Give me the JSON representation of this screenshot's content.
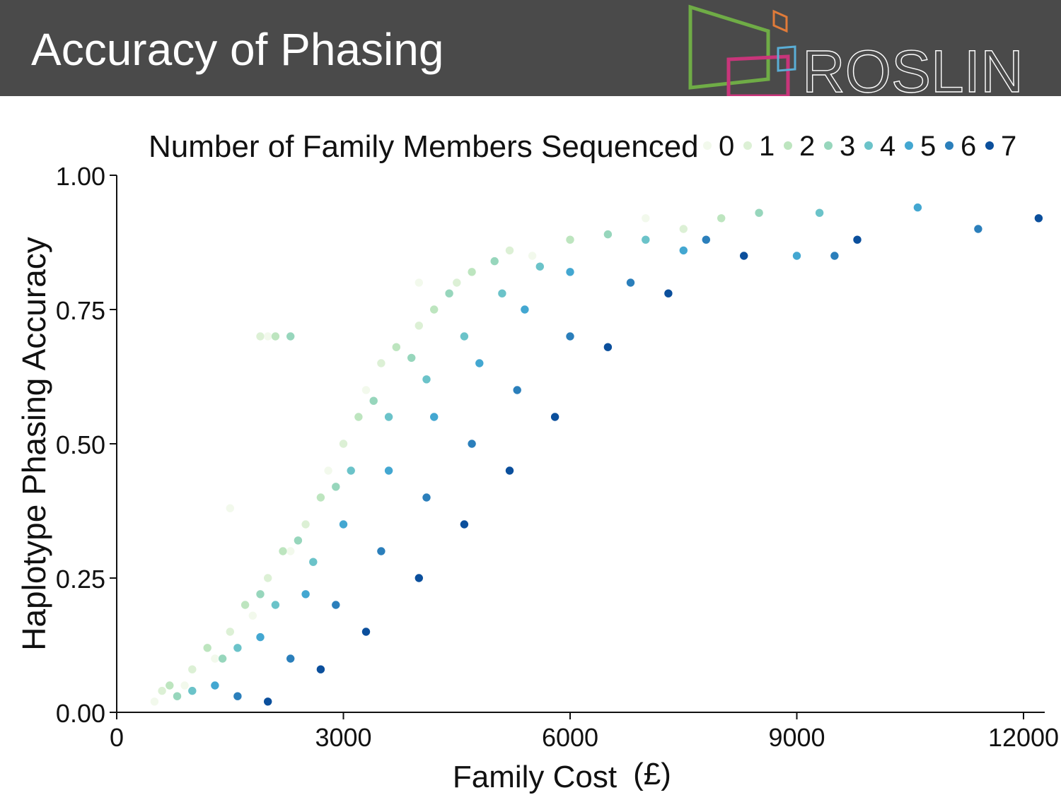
{
  "slide": {
    "title": "Accuracy of Phasing",
    "logo_text": "ROSLIN",
    "logo_colors": {
      "green": "#6fac46",
      "orange": "#e07b39",
      "magenta": "#c8357a",
      "blue": "#5aaed6"
    },
    "banner_color": "#4a4a4a"
  },
  "chart_data": {
    "type": "scatter",
    "title": "",
    "legend_title": "Number of Family Members Sequenced",
    "legend_placement": "top",
    "xlabel": "Family Cost",
    "xlabel_unit": "(£)",
    "ylabel": "Haplotype Phasing Accuracy",
    "xlim": [
      0,
      12200
    ],
    "ylim": [
      0,
      1
    ],
    "x_ticks": [
      "0",
      "3000",
      "6000",
      "9000",
      "12000"
    ],
    "y_ticks": [
      "0.00",
      "0.25",
      "0.50",
      "0.75",
      "1.00"
    ],
    "grid": false,
    "series": [
      {
        "name": "0",
        "color": "#f2f9ec",
        "points": [
          [
            500,
            0.02
          ],
          [
            900,
            0.05
          ],
          [
            1300,
            0.1
          ],
          [
            1800,
            0.18
          ],
          [
            2300,
            0.3
          ],
          [
            2800,
            0.45
          ],
          [
            3300,
            0.6
          ],
          [
            1500,
            0.38
          ],
          [
            2000,
            0.7
          ],
          [
            4000,
            0.8
          ],
          [
            5500,
            0.85
          ],
          [
            7000,
            0.92
          ]
        ]
      },
      {
        "name": "1",
        "color": "#dcf0d5",
        "points": [
          [
            600,
            0.04
          ],
          [
            1000,
            0.08
          ],
          [
            1500,
            0.15
          ],
          [
            2000,
            0.25
          ],
          [
            2500,
            0.35
          ],
          [
            3000,
            0.5
          ],
          [
            3500,
            0.65
          ],
          [
            4000,
            0.72
          ],
          [
            4500,
            0.8
          ],
          [
            1900,
            0.7
          ],
          [
            5200,
            0.86
          ],
          [
            7500,
            0.9
          ]
        ]
      },
      {
        "name": "2",
        "color": "#bde5bf",
        "points": [
          [
            700,
            0.05
          ],
          [
            1200,
            0.12
          ],
          [
            1700,
            0.2
          ],
          [
            2200,
            0.3
          ],
          [
            2700,
            0.4
          ],
          [
            3200,
            0.55
          ],
          [
            3700,
            0.68
          ],
          [
            4200,
            0.75
          ],
          [
            4700,
            0.82
          ],
          [
            2100,
            0.7
          ],
          [
            6000,
            0.88
          ],
          [
            8000,
            0.92
          ]
        ]
      },
      {
        "name": "3",
        "color": "#97d6bc",
        "points": [
          [
            800,
            0.03
          ],
          [
            1400,
            0.1
          ],
          [
            1900,
            0.22
          ],
          [
            2400,
            0.32
          ],
          [
            2900,
            0.42
          ],
          [
            3400,
            0.58
          ],
          [
            3900,
            0.66
          ],
          [
            4400,
            0.78
          ],
          [
            5000,
            0.84
          ],
          [
            2300,
            0.7
          ],
          [
            6500,
            0.89
          ],
          [
            8500,
            0.93
          ]
        ]
      },
      {
        "name": "4",
        "color": "#6bc3c9",
        "points": [
          [
            1000,
            0.04
          ],
          [
            1600,
            0.12
          ],
          [
            2100,
            0.2
          ],
          [
            2600,
            0.28
          ],
          [
            3100,
            0.45
          ],
          [
            3600,
            0.55
          ],
          [
            4100,
            0.62
          ],
          [
            4600,
            0.7
          ],
          [
            5100,
            0.78
          ],
          [
            5600,
            0.83
          ],
          [
            7000,
            0.88
          ],
          [
            9300,
            0.93
          ]
        ]
      },
      {
        "name": "5",
        "color": "#43a7d1",
        "points": [
          [
            1300,
            0.05
          ],
          [
            1900,
            0.14
          ],
          [
            2500,
            0.22
          ],
          [
            3000,
            0.35
          ],
          [
            3600,
            0.45
          ],
          [
            4200,
            0.55
          ],
          [
            4800,
            0.65
          ],
          [
            5400,
            0.75
          ],
          [
            6000,
            0.82
          ],
          [
            7500,
            0.86
          ],
          [
            9000,
            0.85
          ],
          [
            10600,
            0.94
          ]
        ]
      },
      {
        "name": "6",
        "color": "#2b7fbb",
        "points": [
          [
            1600,
            0.03
          ],
          [
            2300,
            0.1
          ],
          [
            2900,
            0.2
          ],
          [
            3500,
            0.3
          ],
          [
            4100,
            0.4
          ],
          [
            4700,
            0.5
          ],
          [
            5300,
            0.6
          ],
          [
            6000,
            0.7
          ],
          [
            6800,
            0.8
          ],
          [
            7800,
            0.88
          ],
          [
            9500,
            0.85
          ],
          [
            11400,
            0.9
          ]
        ]
      },
      {
        "name": "7",
        "color": "#0b4f9c",
        "points": [
          [
            2000,
            0.02
          ],
          [
            2700,
            0.08
          ],
          [
            3300,
            0.15
          ],
          [
            4000,
            0.25
          ],
          [
            4600,
            0.35
          ],
          [
            5200,
            0.45
          ],
          [
            5800,
            0.55
          ],
          [
            6500,
            0.68
          ],
          [
            7300,
            0.78
          ],
          [
            8300,
            0.85
          ],
          [
            9800,
            0.88
          ],
          [
            12200,
            0.92
          ]
        ]
      }
    ]
  }
}
